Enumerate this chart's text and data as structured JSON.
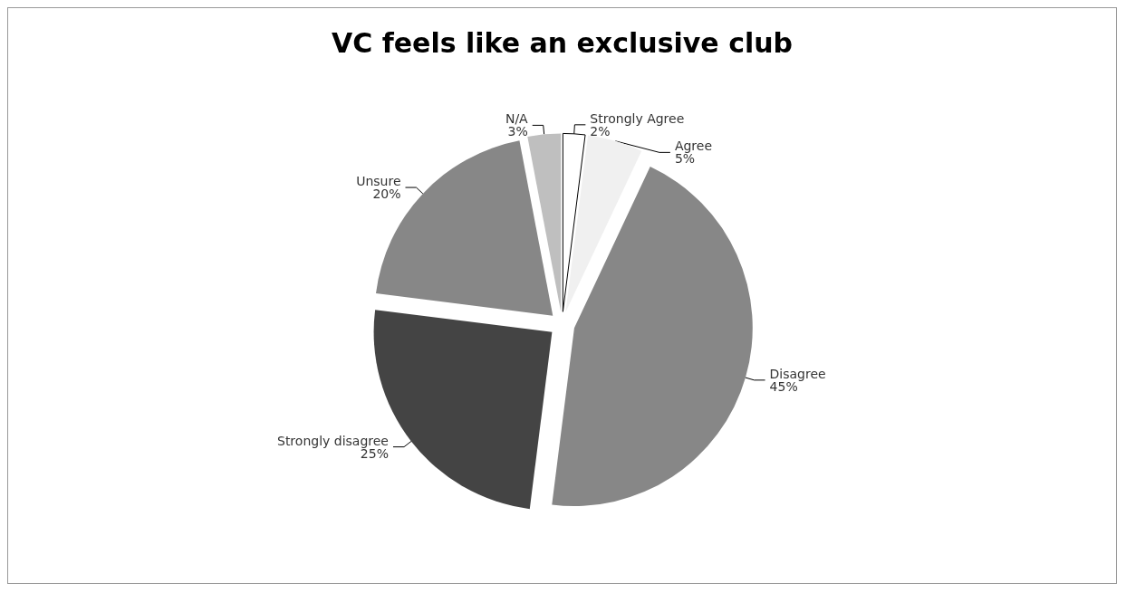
{
  "chart_data": {
    "type": "pie",
    "title": "VC feels like an exclusive club",
    "categories": [
      "Strongly Agree",
      "Agree",
      "Disagree",
      "Strongly disagree",
      "Unsure",
      "N/A"
    ],
    "values": [
      2,
      5,
      45,
      25,
      20,
      3
    ],
    "value_labels": [
      "2%",
      "5%",
      "45%",
      "25%",
      "20%",
      "3%"
    ],
    "colors": [
      "#ffffff",
      "#f0f0f0",
      "#878787",
      "#444444",
      "#878787",
      "#bfbfbf"
    ],
    "legend": false
  }
}
